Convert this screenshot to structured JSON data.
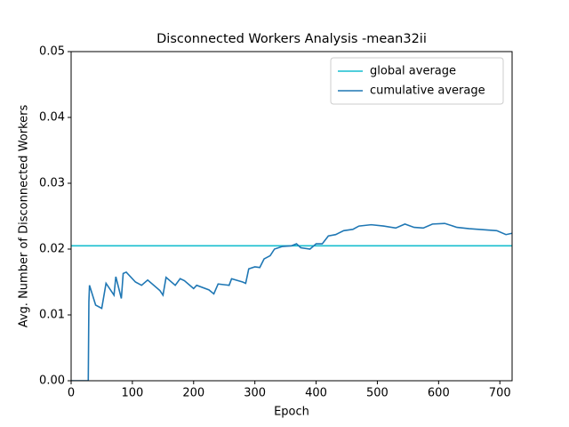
{
  "chart_data": {
    "type": "line",
    "title": "Disconnected Workers Analysis -mean32ii",
    "x_label": "Epoch",
    "y_label": "Avg. Number of Disconnected Workers",
    "xlim": [
      0,
      720
    ],
    "ylim": [
      0,
      0.05
    ],
    "xticks": [
      0,
      100,
      200,
      300,
      400,
      500,
      600,
      700
    ],
    "yticks": [
      {
        "value": 0,
        "label": "0.00"
      },
      {
        "value": 0.01,
        "label": "0.01"
      },
      {
        "value": 0.02,
        "label": "0.02"
      },
      {
        "value": 0.03,
        "label": "0.03"
      },
      {
        "value": 0.04,
        "label": "0.04"
      },
      {
        "value": 0.05,
        "label": "0.05"
      }
    ],
    "legend": "upper right",
    "series": [
      {
        "name": "global average",
        "color": "#17becf",
        "x": [
          0,
          720
        ],
        "values": [
          0.0205,
          0.0205
        ]
      },
      {
        "name": "cumulative average",
        "color": "#1f77b4",
        "x": [
          0,
          28,
          29,
          30,
          40,
          50,
          57,
          70,
          73,
          82,
          85,
          90,
          105,
          115,
          125,
          145,
          150,
          155,
          170,
          178,
          185,
          200,
          205,
          225,
          233,
          240,
          258,
          262,
          280,
          285,
          290,
          300,
          308,
          315,
          325,
          332,
          345,
          360,
          368,
          375,
          390,
          400,
          410,
          420,
          432,
          445,
          460,
          470,
          490,
          510,
          530,
          545,
          560,
          575,
          590,
          610,
          630,
          650,
          680,
          695,
          710,
          720
        ],
        "values": [
          0,
          0,
          0.012,
          0.0145,
          0.0115,
          0.011,
          0.0148,
          0.013,
          0.0158,
          0.0125,
          0.0163,
          0.0165,
          0.015,
          0.0145,
          0.0153,
          0.0137,
          0.013,
          0.0157,
          0.0145,
          0.0155,
          0.0152,
          0.014,
          0.0145,
          0.0138,
          0.0132,
          0.0147,
          0.0145,
          0.0155,
          0.015,
          0.0148,
          0.017,
          0.0173,
          0.0172,
          0.0185,
          0.019,
          0.02,
          0.0204,
          0.0205,
          0.0208,
          0.0202,
          0.02,
          0.0208,
          0.0208,
          0.022,
          0.0222,
          0.0228,
          0.023,
          0.0235,
          0.0237,
          0.0235,
          0.0232,
          0.0238,
          0.0233,
          0.0232,
          0.0238,
          0.0239,
          0.0233,
          0.0231,
          0.0229,
          0.0228,
          0.0222,
          0.0224
        ]
      }
    ]
  }
}
